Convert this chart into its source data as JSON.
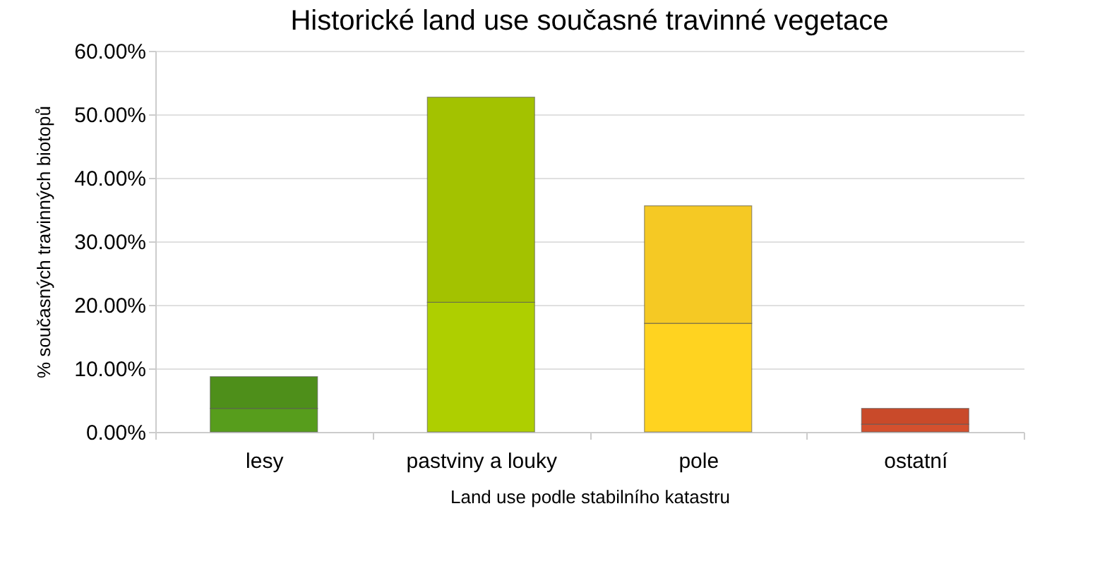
{
  "chart_data": {
    "type": "bar",
    "title": "Historické land use současné travinné vegetace",
    "xlabel": "Land use podle stabilního katastru",
    "ylabel": "% současných travinných biotopů",
    "categories": [
      "lesy",
      "pastviny a louky",
      "pole",
      "ostatní"
    ],
    "stacked": true,
    "series": [
      {
        "colors": [
          "#579d1c",
          "#aecf00",
          "#ffd320",
          "#d4502e"
        ],
        "values": [
          3.7,
          20.4,
          17.1,
          1.2
        ]
      },
      {
        "colors": [
          "#4e8f1a",
          "#a3c200",
          "#f5c924",
          "#c94a2a"
        ],
        "values": [
          5.0,
          32.3,
          18.5,
          2.5
        ]
      }
    ],
    "ylim": [
      0,
      60
    ],
    "yticks": [
      {
        "value": 0,
        "label": "0.00%"
      },
      {
        "value": 10,
        "label": "10.00%"
      },
      {
        "value": 20,
        "label": "20.00%"
      },
      {
        "value": 30,
        "label": "30.00%"
      },
      {
        "value": 40,
        "label": "40.00%"
      },
      {
        "value": 50,
        "label": "50.00%"
      },
      {
        "value": 60,
        "label": "60.00%"
      }
    ],
    "grid": "y"
  }
}
